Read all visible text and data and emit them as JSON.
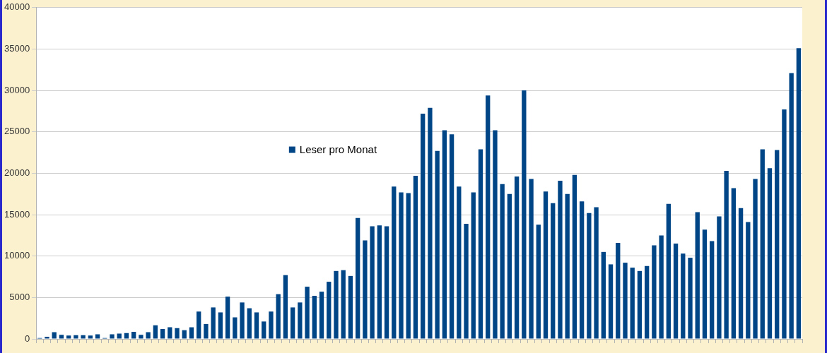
{
  "chart_data": {
    "type": "bar",
    "categories": [
      null,
      null,
      null,
      null,
      null,
      null,
      null,
      null,
      null,
      null,
      null,
      null,
      null,
      null,
      null,
      null,
      null,
      null,
      null,
      null,
      null,
      null,
      null,
      null,
      null,
      null,
      null,
      null,
      null,
      null,
      null,
      null,
      null,
      null,
      null,
      null,
      null,
      null,
      null,
      null,
      null,
      null,
      null,
      null,
      null,
      null,
      null,
      null,
      null,
      null,
      null,
      null,
      null,
      null,
      null,
      null,
      null,
      null,
      null,
      null,
      null,
      null,
      null,
      null,
      null,
      null,
      null,
      null,
      null,
      null,
      null,
      null,
      null,
      null,
      null,
      null,
      null,
      null,
      null,
      null,
      null,
      null,
      null,
      null,
      null,
      null,
      null,
      null,
      null,
      null,
      null,
      null,
      null,
      null,
      null,
      null,
      null,
      null,
      null,
      null,
      null,
      null,
      null,
      null,
      null,
      null
    ],
    "series": [
      {
        "name": "Leser pro Monat",
        "color": "#004586",
        "values": [
          100,
          250,
          800,
          500,
          400,
          450,
          450,
          400,
          550,
          100,
          550,
          650,
          700,
          850,
          500,
          800,
          1650,
          1200,
          1400,
          1300,
          1050,
          1400,
          3300,
          1800,
          3800,
          3200,
          5100,
          2600,
          4400,
          3700,
          3200,
          2100,
          3300,
          5400,
          7700,
          3800,
          4400,
          6300,
          5200,
          5700,
          6900,
          8200,
          8300,
          7600,
          14600,
          11900,
          13600,
          13700,
          13600,
          18400,
          17700,
          17600,
          19700,
          27200,
          27900,
          22700,
          25200,
          24700,
          18400,
          13900,
          17700,
          22900,
          29400,
          25200,
          18700,
          17500,
          19600,
          30000,
          19300,
          13800,
          17800,
          16400,
          19100,
          17500,
          19800,
          16600,
          15200,
          15900,
          10500,
          9000,
          11600,
          9200,
          8600,
          8200,
          8800,
          11300,
          12500,
          16300,
          11500,
          10300,
          9800,
          15300,
          13200,
          11800,
          14800,
          20300,
          18200,
          15800,
          14100,
          19300,
          22900,
          20600,
          22800,
          27700,
          32100,
          35100
        ]
      }
    ],
    "ylim": [
      0,
      40000
    ],
    "yticks": [
      0,
      5000,
      10000,
      15000,
      20000,
      25000,
      30000,
      35000,
      40000
    ],
    "grid": "y",
    "legend": "center",
    "tick_labels": "y"
  }
}
